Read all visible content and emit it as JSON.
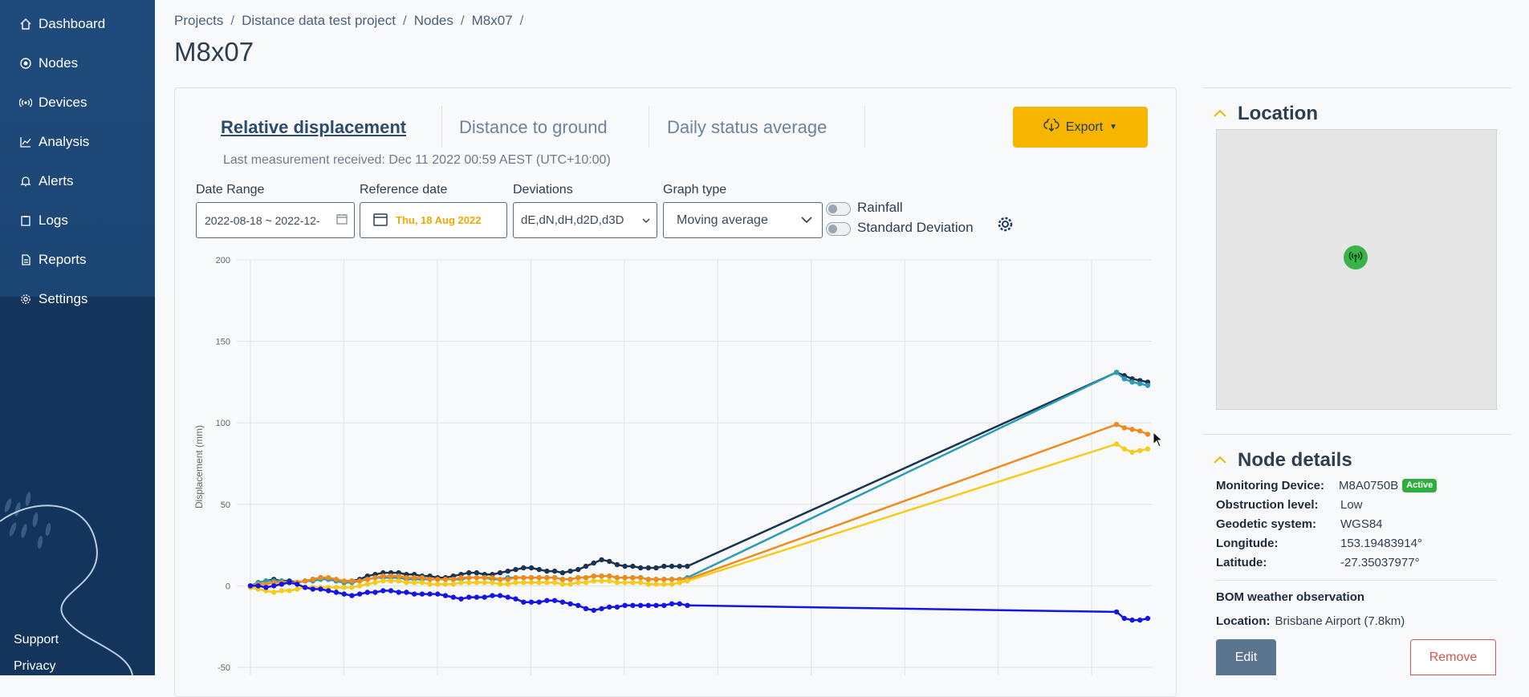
{
  "sidebar": {
    "items": [
      {
        "label": "Dashboard",
        "icon": "home-icon"
      },
      {
        "label": "Nodes",
        "icon": "node-icon"
      },
      {
        "label": "Devices",
        "icon": "signal-icon"
      },
      {
        "label": "Analysis",
        "icon": "chart-line-icon"
      },
      {
        "label": "Alerts",
        "icon": "bell-icon"
      },
      {
        "label": "Logs",
        "icon": "clipboard-icon"
      },
      {
        "label": "Reports",
        "icon": "document-icon"
      },
      {
        "label": "Settings",
        "icon": "gear-icon"
      }
    ],
    "footer": {
      "support": "Support",
      "privacy": "Privacy"
    }
  },
  "breadcrumb": [
    "Projects",
    "Distance data test project",
    "Nodes",
    "M8x07"
  ],
  "breadcrumb_sep": "/",
  "page_title": "M8x07",
  "tabs": [
    "Relative displacement",
    "Distance to ground",
    "Daily status average"
  ],
  "last_measurement": "Last measurement received: Dec 11 2022 00:59 AEST (UTC+10:00)",
  "export": {
    "label": "Export",
    "color": "#f7b500"
  },
  "controls": {
    "date_range_label": "Date Range",
    "date_range_value": "2022-08-18 ~ 2022-12-",
    "reference_label": "Reference date",
    "reference_value": "Thu, 18 Aug 2022",
    "deviations_label": "Deviations",
    "deviations_value": "dE,dN,dH,d2D,d3D",
    "graph_type_label": "Graph type",
    "graph_type_value": "Moving average",
    "rainfall_label": "Rainfall",
    "stddev_label": "Standard Deviation"
  },
  "chart_data": {
    "type": "line",
    "ylabel": "Displacement (mm)",
    "ylim": [
      -50,
      200
    ],
    "yticks": [
      "200",
      "150",
      "100",
      "50",
      "0",
      "-50"
    ],
    "grid": true,
    "x": [
      0,
      1,
      2,
      3,
      4,
      5,
      6,
      7,
      8,
      9,
      10,
      11,
      12,
      13,
      14,
      15,
      16,
      17,
      18,
      19,
      20,
      21,
      22,
      23,
      24,
      25,
      26,
      27,
      28,
      29,
      30,
      31,
      32,
      33,
      34,
      35,
      36,
      37,
      38,
      39,
      40,
      41,
      42,
      43,
      44,
      45,
      46,
      47,
      48,
      49,
      50,
      51,
      52,
      53,
      54,
      55,
      56,
      57,
      58,
      59,
      60,
      61,
      62,
      63,
      64,
      65,
      66,
      67,
      68,
      69,
      70,
      71,
      72,
      73,
      74,
      75,
      76,
      77,
      78,
      79,
      80,
      81,
      82,
      83,
      84,
      85,
      86,
      87,
      88,
      89,
      90,
      91,
      92,
      93,
      94,
      95,
      96,
      97,
      98,
      99,
      100,
      101,
      102,
      103,
      104,
      105,
      106,
      107,
      108,
      109,
      110,
      111,
      112,
      113,
      114,
      115
    ],
    "series": [
      {
        "color": "#1a3350",
        "values": [
          0,
          2,
          3,
          4,
          3,
          3,
          2,
          3,
          4,
          5,
          4,
          3,
          2,
          3,
          4,
          6,
          7,
          8,
          8,
          8,
          7,
          7,
          6,
          6,
          5,
          5,
          6,
          7,
          8,
          8,
          7,
          7,
          8,
          9,
          10,
          11,
          11,
          10,
          9,
          9,
          8,
          9,
          10,
          12,
          14,
          16,
          15,
          13,
          12,
          12,
          11,
          11,
          11,
          12,
          12,
          12,
          12,
          null,
          null,
          null,
          null,
          null,
          null,
          null,
          null,
          null,
          null,
          null,
          null,
          null,
          null,
          null,
          null,
          null,
          null,
          null,
          null,
          null,
          null,
          null,
          null,
          null,
          null,
          null,
          null,
          null,
          null,
          null,
          null,
          null,
          null,
          null,
          null,
          null,
          null,
          null,
          null,
          null,
          null,
          null,
          null,
          null,
          null,
          null,
          null,
          null,
          null,
          null,
          null,
          null,
          null,
          131,
          129,
          127,
          126,
          125
        ]
      },
      {
        "color": "#2c9cb5",
        "values": [
          0,
          2,
          3,
          3,
          3,
          2,
          2,
          3,
          3,
          4,
          4,
          3,
          2,
          2,
          3,
          4,
          5,
          5,
          5,
          5,
          4,
          4,
          4,
          4,
          4,
          4,
          4,
          4,
          5,
          5,
          5,
          4,
          4,
          5,
          5,
          5,
          5,
          5,
          5,
          5,
          4,
          4,
          5,
          5,
          6,
          6,
          6,
          5,
          5,
          5,
          5,
          4,
          4,
          4,
          4,
          4,
          5,
          null,
          null,
          null,
          null,
          null,
          null,
          null,
          null,
          null,
          null,
          null,
          null,
          null,
          null,
          null,
          null,
          null,
          null,
          null,
          null,
          null,
          null,
          null,
          null,
          null,
          null,
          null,
          null,
          null,
          null,
          null,
          null,
          null,
          null,
          null,
          null,
          null,
          null,
          null,
          null,
          null,
          null,
          null,
          null,
          null,
          null,
          null,
          null,
          null,
          null,
          null,
          null,
          null,
          null,
          131,
          127,
          125,
          124,
          123
        ]
      },
      {
        "color": "#f08a1c",
        "values": [
          0,
          1,
          1,
          2,
          2,
          2,
          2,
          3,
          4,
          5,
          5,
          4,
          3,
          3,
          3,
          4,
          5,
          6,
          6,
          6,
          5,
          5,
          5,
          4,
          4,
          4,
          4,
          5,
          5,
          5,
          5,
          5,
          4,
          4,
          5,
          5,
          5,
          5,
          5,
          5,
          4,
          4,
          5,
          5,
          6,
          6,
          6,
          5,
          5,
          5,
          5,
          4,
          4,
          4,
          4,
          4,
          4,
          null,
          null,
          null,
          null,
          null,
          null,
          null,
          null,
          null,
          null,
          null,
          null,
          null,
          null,
          null,
          null,
          null,
          null,
          null,
          null,
          null,
          null,
          null,
          null,
          null,
          null,
          null,
          null,
          null,
          null,
          null,
          null,
          null,
          null,
          null,
          null,
          null,
          null,
          null,
          null,
          null,
          null,
          null,
          null,
          null,
          null,
          null,
          null,
          null,
          null,
          null,
          null,
          null,
          null,
          99,
          97,
          96,
          95,
          93
        ]
      },
      {
        "color": "#f5cb1c",
        "values": [
          -1,
          -2,
          -3,
          -4,
          -3,
          -3,
          -2,
          -1,
          -1,
          -1,
          -1,
          -1,
          -1,
          -1,
          0,
          1,
          2,
          3,
          3,
          3,
          2,
          2,
          2,
          1,
          1,
          1,
          1,
          2,
          2,
          2,
          2,
          2,
          1,
          1,
          2,
          2,
          2,
          2,
          2,
          2,
          1,
          1,
          2,
          2,
          3,
          3,
          3,
          2,
          2,
          2,
          2,
          1,
          1,
          1,
          1,
          2,
          3,
          null,
          null,
          null,
          null,
          null,
          null,
          null,
          null,
          null,
          null,
          null,
          null,
          null,
          null,
          null,
          null,
          null,
          null,
          null,
          null,
          null,
          null,
          null,
          null,
          null,
          null,
          null,
          null,
          null,
          null,
          null,
          null,
          null,
          null,
          null,
          null,
          null,
          null,
          null,
          null,
          null,
          null,
          null,
          null,
          null,
          null,
          null,
          null,
          null,
          null,
          null,
          null,
          null,
          null,
          87,
          84,
          82,
          83,
          84
        ]
      },
      {
        "color": "#1414e6",
        "values": [
          0,
          0,
          -1,
          0,
          1,
          2,
          1,
          -1,
          -2,
          -2,
          -3,
          -4,
          -5,
          -6,
          -5,
          -4,
          -4,
          -3,
          -3,
          -4,
          -4,
          -5,
          -5,
          -5,
          -5,
          -6,
          -7,
          -8,
          -7,
          -7,
          -7,
          -6,
          -6,
          -7,
          -8,
          -10,
          -10,
          -10,
          -9,
          -9,
          -10,
          -11,
          -12,
          -14,
          -15,
          -14,
          -13,
          -13,
          -12,
          -12,
          -12,
          -12,
          -12,
          -12,
          -11,
          -11,
          -12,
          null,
          null,
          null,
          null,
          null,
          null,
          null,
          null,
          null,
          null,
          null,
          null,
          null,
          null,
          null,
          null,
          null,
          null,
          null,
          null,
          null,
          null,
          null,
          null,
          null,
          null,
          null,
          null,
          null,
          null,
          null,
          null,
          null,
          null,
          null,
          null,
          null,
          null,
          null,
          null,
          null,
          null,
          null,
          null,
          null,
          null,
          null,
          null,
          null,
          null,
          null,
          null,
          null,
          null,
          -16,
          -20,
          -21,
          -21,
          -20
        ]
      }
    ]
  },
  "location": {
    "title": "Location"
  },
  "node_details": {
    "title": "Node details",
    "rows": [
      {
        "key": "Monitoring Device:",
        "value": "M8A0750B",
        "badge": "Active"
      },
      {
        "key": "Obstruction level:",
        "value": "Low"
      },
      {
        "key": "Geodetic system:",
        "value": "WGS84"
      },
      {
        "key": "Longitude:",
        "value": "153.19483914°"
      },
      {
        "key": "Latitude:",
        "value": "-27.35037977°"
      }
    ],
    "bom_title": "BOM weather observation",
    "bom_location_key": "Location:",
    "bom_location_value": "Brisbane Airport (7.8km)",
    "edit_label": "Edit",
    "remove_label": "Remove"
  }
}
